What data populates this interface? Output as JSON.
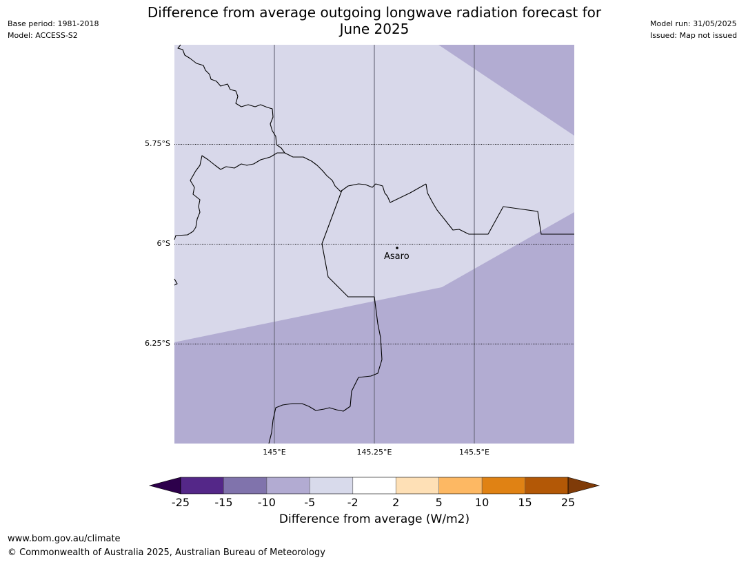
{
  "header": {
    "title_line1": "Difference from average outgoing longwave radiation forecast for",
    "title_line2": "June 2025",
    "base_period": "Base period: 1981-2018",
    "model": "Model: ACCESS-S2",
    "model_run": "Model run: 31/05/2025",
    "issued": "Issued: Map not issued"
  },
  "map": {
    "lat_labels": [
      "5.75°S",
      "6°S",
      "6.25°S"
    ],
    "lon_labels": [
      "145°E",
      "145.25°E",
      "145.5°E"
    ],
    "place": {
      "name": "Asaro",
      "lat": -6.01,
      "lon": 145.3
    },
    "fill_colors": {
      "minus5_to_minus2": "#d8d8ea",
      "minus10_to_minus5": "#b2acd2"
    }
  },
  "colorbar": {
    "ticks": [
      "-25",
      "-15",
      "-10",
      "-5",
      "-2",
      "2",
      "5",
      "10",
      "15",
      "25"
    ],
    "colors": [
      "#542788",
      "#8073ac",
      "#b2abd2",
      "#d8daeb",
      "#ffffff",
      "#fee0b6",
      "#fdb863",
      "#e08214",
      "#b35806"
    ],
    "under_color": "#2d004b",
    "over_color": "#7f3b08",
    "label": "Difference from average (W/m2)"
  },
  "footer": {
    "url": "www.bom.gov.au/climate",
    "copyright": "© Commonwealth of Australia 2025, Australian Bureau of Meteorology"
  }
}
